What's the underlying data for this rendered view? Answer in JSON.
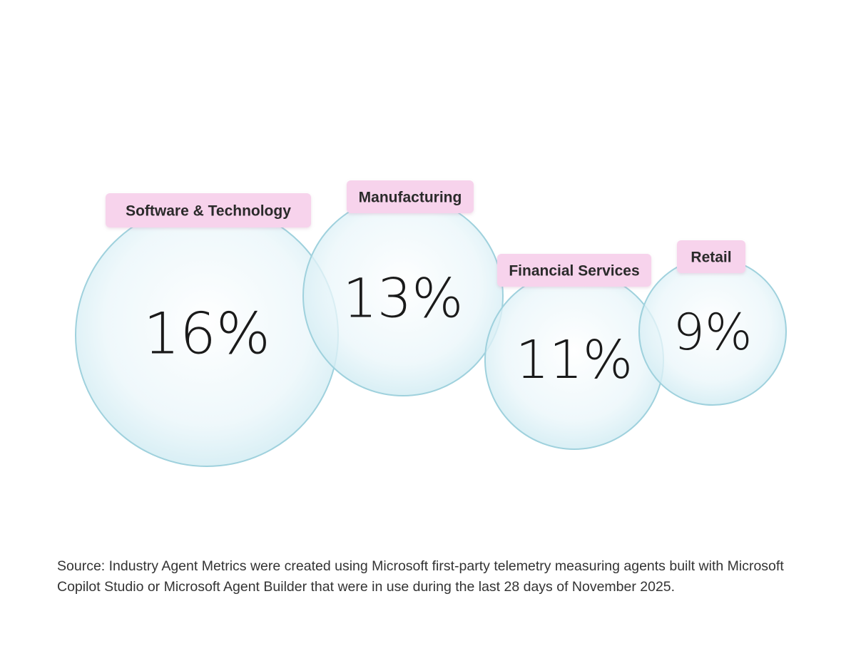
{
  "chart_data": {
    "type": "bubble",
    "unit": "%",
    "categories": [
      "Software & Technology",
      "Manufacturing",
      "Financial Services",
      "Retail"
    ],
    "values": [
      16,
      13,
      11,
      9
    ],
    "labels": [
      "16%",
      "13%",
      "11%",
      "9%"
    ]
  },
  "source_note": "Source: Industry Agent Metrics were created using Microsoft first-party telemetry measuring agents built with Microsoft Copilot Studio or Microsoft Agent Builder that were in use during the last 28 days of November 2025.",
  "colors": {
    "bubble_fill_center": "#ffffff",
    "bubble_fill_edge": "#d2ecf3",
    "bubble_stroke": "#9fd1dd",
    "tag_fill": "#f7d3ec",
    "value_text": "#1a1a1a",
    "tag_text": "#2a2a2a"
  }
}
